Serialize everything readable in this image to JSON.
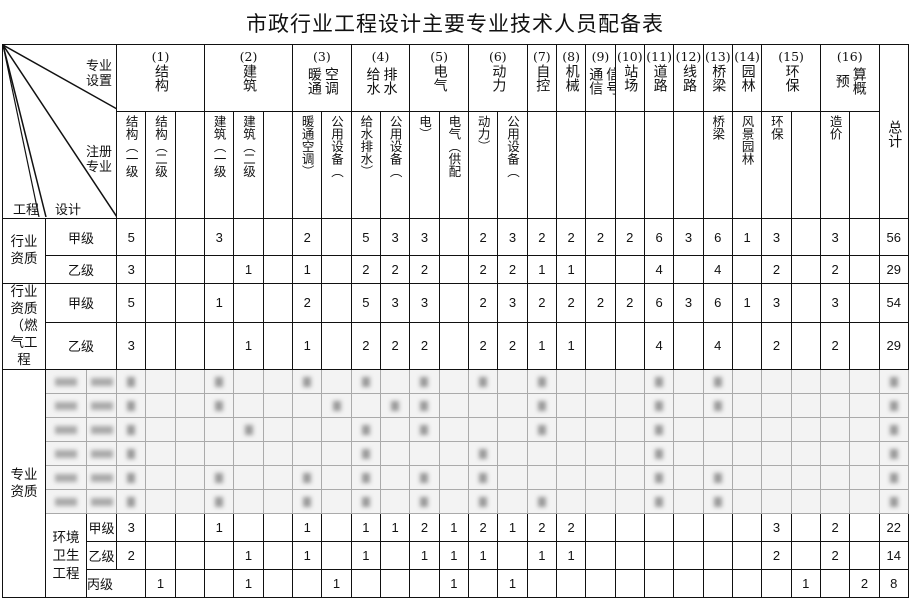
{
  "title": "市政行业工程设计主要专业技术人员配备表",
  "corner": {
    "top_label": "专业设置",
    "mid_label": "注册专业",
    "bottom_left": "工程",
    "bottom_mid": "设计"
  },
  "groups": [
    {
      "num": "(1)",
      "name": "结构",
      "span": 3
    },
    {
      "num": "(2)",
      "name": "建筑",
      "span": 3
    },
    {
      "num": "(3)",
      "name": "空调暖通",
      "span": 2
    },
    {
      "num": "(4)",
      "name": "排水给水",
      "span": 2
    },
    {
      "num": "(5)",
      "name": "电气",
      "span": 2
    },
    {
      "num": "(6)",
      "name": "动力",
      "span": 2
    },
    {
      "num": "(7)",
      "name": "自控",
      "span": 1
    },
    {
      "num": "(8)",
      "name": "机械",
      "span": 1
    },
    {
      "num": "(9)",
      "name": "信号通信",
      "span": 1
    },
    {
      "num": "(10)",
      "name": "站场",
      "span": 1
    },
    {
      "num": "(11)",
      "name": "道路",
      "span": 1
    },
    {
      "num": "(12)",
      "name": "线路",
      "span": 1
    },
    {
      "num": "(13)",
      "name": "桥梁",
      "span": 1
    },
    {
      "num": "(14)",
      "name": "园林",
      "span": 1
    },
    {
      "num": "(15)",
      "name": "环保",
      "span": 2
    },
    {
      "num": "(16)",
      "name": "算概预",
      "span": 2
    }
  ],
  "total_label": "总计",
  "registered": [
    "结构（一级",
    "结构（二级",
    "",
    "建筑（一级",
    "建筑（二级",
    "",
    "暖通空调）",
    "公用设备（",
    "给水排水）",
    "公用设备（",
    "电）",
    "电气（供配",
    "动力）",
    "公用设备（",
    "",
    "",
    "",
    "",
    "",
    "",
    "桥梁",
    "风景园林",
    "环保",
    "",
    "造价",
    ""
  ],
  "sections": [
    {
      "label": "行业资质",
      "rows": [
        {
          "grade": "甲级",
          "values": [
            "5",
            "",
            "",
            "3",
            "",
            "",
            "2",
            "",
            "5",
            "3",
            "3",
            "",
            "2",
            "3",
            "2",
            "2",
            "2",
            "2",
            "6",
            "3",
            "6",
            "1",
            "3",
            "",
            "3",
            "",
            "56"
          ]
        },
        {
          "grade": "乙级",
          "values": [
            "3",
            "",
            "",
            "",
            "1",
            "",
            "1",
            "",
            "2",
            "2",
            "2",
            "",
            "2",
            "2",
            "1",
            "1",
            "",
            "",
            "4",
            "",
            "4",
            "",
            "2",
            "",
            "2",
            "",
            "29"
          ]
        }
      ]
    },
    {
      "label": "行业资质（燃气工程",
      "rows": [
        {
          "grade": "甲级",
          "values": [
            "5",
            "",
            "",
            "1",
            "",
            "",
            "2",
            "",
            "5",
            "3",
            "3",
            "",
            "2",
            "3",
            "2",
            "2",
            "2",
            "2",
            "6",
            "3",
            "6",
            "1",
            "3",
            "",
            "3",
            "",
            "54"
          ]
        },
        {
          "grade": "乙级",
          "values": [
            "3",
            "",
            "",
            "",
            "1",
            "",
            "1",
            "",
            "2",
            "2",
            "2",
            "",
            "2",
            "2",
            "1",
            "1",
            "",
            "",
            "4",
            "",
            "4",
            "",
            "2",
            "",
            "2",
            "",
            "29"
          ]
        }
      ]
    }
  ],
  "professional": {
    "label": "专业资质",
    "env": {
      "label": "环境卫生工程",
      "rows": [
        {
          "grade": "甲级",
          "values": [
            "3",
            "",
            "",
            "1",
            "",
            "",
            "1",
            "",
            "1",
            "1",
            "2",
            "1",
            "2",
            "1",
            "2",
            "2",
            "",
            "",
            "",
            "",
            "",
            "",
            "3",
            "",
            "2",
            "",
            "22"
          ]
        },
        {
          "grade": "乙级",
          "values": [
            "2",
            "",
            "",
            "",
            "1",
            "",
            "1",
            "",
            "1",
            "",
            "1",
            "1",
            "1",
            "",
            "1",
            "1",
            "",
            "",
            "",
            "",
            "",
            "",
            "2",
            "",
            "2",
            "",
            "14"
          ]
        },
        {
          "grade": "丙级",
          "values": [
            "",
            "1",
            "",
            "",
            "1",
            "",
            "",
            "1",
            "",
            "",
            "",
            "1",
            "",
            "1",
            "",
            "",
            "",
            "",
            "",
            "",
            "",
            "",
            "",
            "1",
            "",
            "2",
            "8"
          ]
        }
      ]
    }
  }
}
